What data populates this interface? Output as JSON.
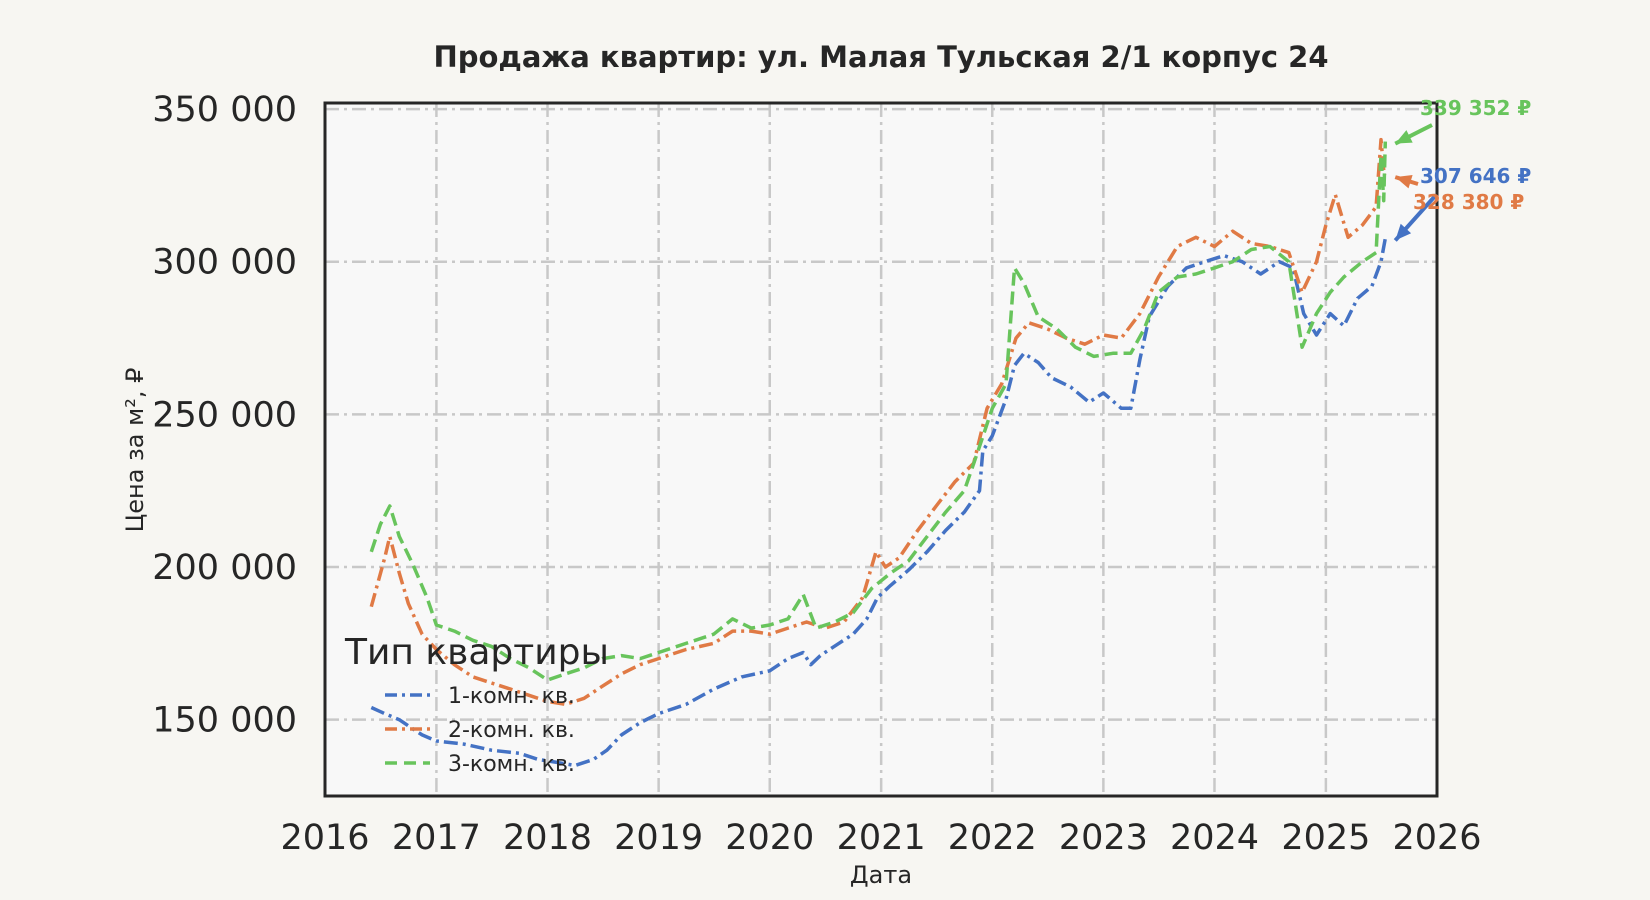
{
  "chart_data": {
    "type": "line",
    "title": "Продажа квартир: ул. Малая Тульская 2/1 корпус 24",
    "xlabel": "Дата",
    "ylabel": "Цена за м², ₽",
    "xlim": [
      "2016-01-01",
      "2026-01-01"
    ],
    "ylim": [
      125000,
      352000
    ],
    "x_ticks": [
      "2016",
      "2017",
      "2018",
      "2019",
      "2020",
      "2021",
      "2022",
      "2023",
      "2024",
      "2025",
      "2026"
    ],
    "y_ticks": [
      {
        "value": 150000,
        "label": "150 000"
      },
      {
        "value": 200000,
        "label": "200 000"
      },
      {
        "value": 250000,
        "label": "250 000"
      },
      {
        "value": 300000,
        "label": "300 000"
      },
      {
        "value": 350000,
        "label": "350 000"
      }
    ],
    "grid": true,
    "legend": {
      "title": "Тип квартиры",
      "placement": "lower-left"
    },
    "series": [
      {
        "name": "1-комн. кв.",
        "color": "#4472c4",
        "dash": "dashdot",
        "points": [
          [
            "2016-06-01",
            154000
          ],
          [
            "2016-07-15",
            152000
          ],
          [
            "2016-09-01",
            150000
          ],
          [
            "2016-10-15",
            147000
          ],
          [
            "2016-11-15",
            145000
          ],
          [
            "2017-01-01",
            143000
          ],
          [
            "2017-04-01",
            142000
          ],
          [
            "2017-07-01",
            140000
          ],
          [
            "2017-10-01",
            139000
          ],
          [
            "2017-12-01",
            137000
          ],
          [
            "2018-02-01",
            136000
          ],
          [
            "2018-04-01",
            135000
          ],
          [
            "2018-06-01",
            137000
          ],
          [
            "2018-07-15",
            140000
          ],
          [
            "2018-09-01",
            145000
          ],
          [
            "2018-11-01",
            149000
          ],
          [
            "2019-01-01",
            152000
          ],
          [
            "2019-04-01",
            155000
          ],
          [
            "2019-07-01",
            160000
          ],
          [
            "2019-10-01",
            164000
          ],
          [
            "2020-01-01",
            166000
          ],
          [
            "2020-03-01",
            170000
          ],
          [
            "2020-04-20",
            172000
          ],
          [
            "2020-05-15",
            168000
          ],
          [
            "2020-06-15",
            171000
          ],
          [
            "2020-08-15",
            175000
          ],
          [
            "2020-10-01",
            178000
          ],
          [
            "2020-11-15",
            183000
          ],
          [
            "2020-12-20",
            190000
          ],
          [
            "2021-02-01",
            194000
          ],
          [
            "2021-04-01",
            199000
          ],
          [
            "2021-06-01",
            205000
          ],
          [
            "2021-08-01",
            212000
          ],
          [
            "2021-10-01",
            218000
          ],
          [
            "2021-11-20",
            225000
          ],
          [
            "2021-12-01",
            238000
          ],
          [
            "2022-01-01",
            243000
          ],
          [
            "2022-02-15",
            255000
          ],
          [
            "2022-03-15",
            266000
          ],
          [
            "2022-04-15",
            270000
          ],
          [
            "2022-06-01",
            267000
          ],
          [
            "2022-07-15",
            262000
          ],
          [
            "2022-09-15",
            259000
          ],
          [
            "2022-11-15",
            254000
          ],
          [
            "2023-01-01",
            257000
          ],
          [
            "2023-03-01",
            252000
          ],
          [
            "2023-04-01",
            252000
          ],
          [
            "2023-05-01",
            268000
          ],
          [
            "2023-06-01",
            282000
          ],
          [
            "2023-08-01",
            292000
          ],
          [
            "2023-10-01",
            298000
          ],
          [
            "2023-12-01",
            300000
          ],
          [
            "2024-02-01",
            302000
          ],
          [
            "2024-04-01",
            300000
          ],
          [
            "2024-06-01",
            296000
          ],
          [
            "2024-08-01",
            300000
          ],
          [
            "2024-09-15",
            298000
          ],
          [
            "2024-10-20",
            283000
          ],
          [
            "2024-12-01",
            276000
          ],
          [
            "2025-01-15",
            283000
          ],
          [
            "2025-03-01",
            279000
          ],
          [
            "2025-04-15",
            288000
          ],
          [
            "2025-06-01",
            292000
          ],
          [
            "2025-07-01",
            300000
          ],
          [
            "2025-07-15",
            307646
          ]
        ]
      },
      {
        "name": "2-комн. кв.",
        "color": "#e07a45",
        "dash": "dashdot",
        "points": [
          [
            "2016-06-01",
            187000
          ],
          [
            "2016-07-15",
            203000
          ],
          [
            "2016-08-01",
            210000
          ],
          [
            "2016-09-01",
            198000
          ],
          [
            "2016-10-01",
            188000
          ],
          [
            "2016-11-15",
            178000
          ],
          [
            "2017-01-01",
            173000
          ],
          [
            "2017-03-01",
            168000
          ],
          [
            "2017-05-01",
            164000
          ],
          [
            "2017-07-01",
            162000
          ],
          [
            "2017-09-01",
            160000
          ],
          [
            "2017-11-01",
            158000
          ],
          [
            "2018-01-01",
            156000
          ],
          [
            "2018-03-01",
            155000
          ],
          [
            "2018-05-01",
            157000
          ],
          [
            "2018-07-01",
            161000
          ],
          [
            "2018-09-01",
            165000
          ],
          [
            "2018-11-01",
            168000
          ],
          [
            "2019-01-01",
            170000
          ],
          [
            "2019-04-01",
            173000
          ],
          [
            "2019-07-01",
            175000
          ],
          [
            "2019-09-01",
            179000
          ],
          [
            "2019-11-01",
            179000
          ],
          [
            "2020-01-01",
            178000
          ],
          [
            "2020-03-01",
            180000
          ],
          [
            "2020-05-01",
            182000
          ],
          [
            "2020-07-01",
            180000
          ],
          [
            "2020-09-01",
            182000
          ],
          [
            "2020-11-01",
            190000
          ],
          [
            "2020-12-15",
            205000
          ],
          [
            "2021-01-15",
            200000
          ],
          [
            "2021-03-01",
            203000
          ],
          [
            "2021-05-01",
            212000
          ],
          [
            "2021-07-01",
            220000
          ],
          [
            "2021-09-01",
            228000
          ],
          [
            "2021-11-01",
            234000
          ],
          [
            "2021-12-15",
            252000
          ],
          [
            "2022-02-01",
            260000
          ],
          [
            "2022-03-20",
            275000
          ],
          [
            "2022-05-01",
            280000
          ],
          [
            "2022-07-01",
            278000
          ],
          [
            "2022-09-01",
            275000
          ],
          [
            "2022-11-01",
            273000
          ],
          [
            "2023-01-01",
            276000
          ],
          [
            "2023-03-01",
            275000
          ],
          [
            "2023-05-01",
            283000
          ],
          [
            "2023-07-01",
            295000
          ],
          [
            "2023-09-01",
            305000
          ],
          [
            "2023-11-01",
            308000
          ],
          [
            "2024-01-01",
            305000
          ],
          [
            "2024-03-01",
            310000
          ],
          [
            "2024-05-01",
            306000
          ],
          [
            "2024-07-01",
            305000
          ],
          [
            "2024-09-01",
            303000
          ],
          [
            "2024-10-15",
            290000
          ],
          [
            "2024-12-01",
            300000
          ],
          [
            "2025-01-01",
            312000
          ],
          [
            "2025-02-01",
            322000
          ],
          [
            "2025-03-15",
            308000
          ],
          [
            "2025-05-01",
            312000
          ],
          [
            "2025-06-15",
            318000
          ],
          [
            "2025-07-01",
            340000
          ],
          [
            "2025-07-10",
            330000
          ],
          [
            "2025-07-15",
            328380
          ]
        ]
      },
      {
        "name": "3-комн. кв.",
        "color": "#68c45c",
        "dash": "dashed",
        "points": [
          [
            "2016-06-01",
            205000
          ],
          [
            "2016-07-01",
            214000
          ],
          [
            "2016-08-01",
            220000
          ],
          [
            "2016-09-01",
            210000
          ],
          [
            "2016-10-15",
            201000
          ],
          [
            "2016-12-01",
            190000
          ],
          [
            "2017-01-01",
            181000
          ],
          [
            "2017-03-01",
            179000
          ],
          [
            "2017-05-01",
            176000
          ],
          [
            "2017-07-01",
            174000
          ],
          [
            "2017-09-01",
            170000
          ],
          [
            "2017-11-01",
            167000
          ],
          [
            "2018-01-01",
            163000
          ],
          [
            "2018-03-01",
            165000
          ],
          [
            "2018-05-01",
            167000
          ],
          [
            "2018-07-01",
            170000
          ],
          [
            "2018-09-01",
            171000
          ],
          [
            "2018-11-01",
            170000
          ],
          [
            "2019-01-01",
            172000
          ],
          [
            "2019-04-01",
            175000
          ],
          [
            "2019-07-01",
            178000
          ],
          [
            "2019-09-01",
            183000
          ],
          [
            "2019-11-01",
            180000
          ],
          [
            "2020-01-01",
            181000
          ],
          [
            "2020-03-01",
            183000
          ],
          [
            "2020-04-20",
            191000
          ],
          [
            "2020-06-01",
            180000
          ],
          [
            "2020-08-01",
            182000
          ],
          [
            "2020-10-01",
            185000
          ],
          [
            "2020-12-01",
            193000
          ],
          [
            "2021-02-01",
            198000
          ],
          [
            "2021-04-01",
            202000
          ],
          [
            "2021-06-01",
            210000
          ],
          [
            "2021-08-01",
            218000
          ],
          [
            "2021-10-01",
            225000
          ],
          [
            "2021-11-15",
            238000
          ],
          [
            "2022-01-01",
            252000
          ],
          [
            "2022-02-15",
            260000
          ],
          [
            "2022-03-15",
            298000
          ],
          [
            "2022-04-15",
            293000
          ],
          [
            "2022-06-01",
            282000
          ],
          [
            "2022-08-01",
            278000
          ],
          [
            "2022-10-01",
            272000
          ],
          [
            "2022-12-01",
            269000
          ],
          [
            "2023-02-01",
            270000
          ],
          [
            "2023-04-01",
            270000
          ],
          [
            "2023-05-15",
            278000
          ],
          [
            "2023-07-01",
            290000
          ],
          [
            "2023-09-01",
            295000
          ],
          [
            "2023-11-01",
            296000
          ],
          [
            "2024-01-01",
            298000
          ],
          [
            "2024-03-01",
            300000
          ],
          [
            "2024-05-01",
            304000
          ],
          [
            "2024-07-01",
            305000
          ],
          [
            "2024-09-01",
            300000
          ],
          [
            "2024-10-15",
            272000
          ],
          [
            "2024-12-01",
            283000
          ],
          [
            "2025-01-15",
            290000
          ],
          [
            "2025-03-01",
            295000
          ],
          [
            "2025-05-01",
            300000
          ],
          [
            "2025-06-15",
            303000
          ],
          [
            "2025-07-01",
            335000
          ],
          [
            "2025-07-10",
            320000
          ],
          [
            "2025-07-15",
            339352
          ]
        ]
      }
    ],
    "annotations": [
      {
        "series": 2,
        "text": "339 352 ₽",
        "color": "#68c45c"
      },
      {
        "series": 0,
        "text": "307 646 ₽",
        "color": "#4472c4"
      },
      {
        "series": 1,
        "text": "328 380 ₽",
        "color": "#e07a45"
      }
    ]
  }
}
